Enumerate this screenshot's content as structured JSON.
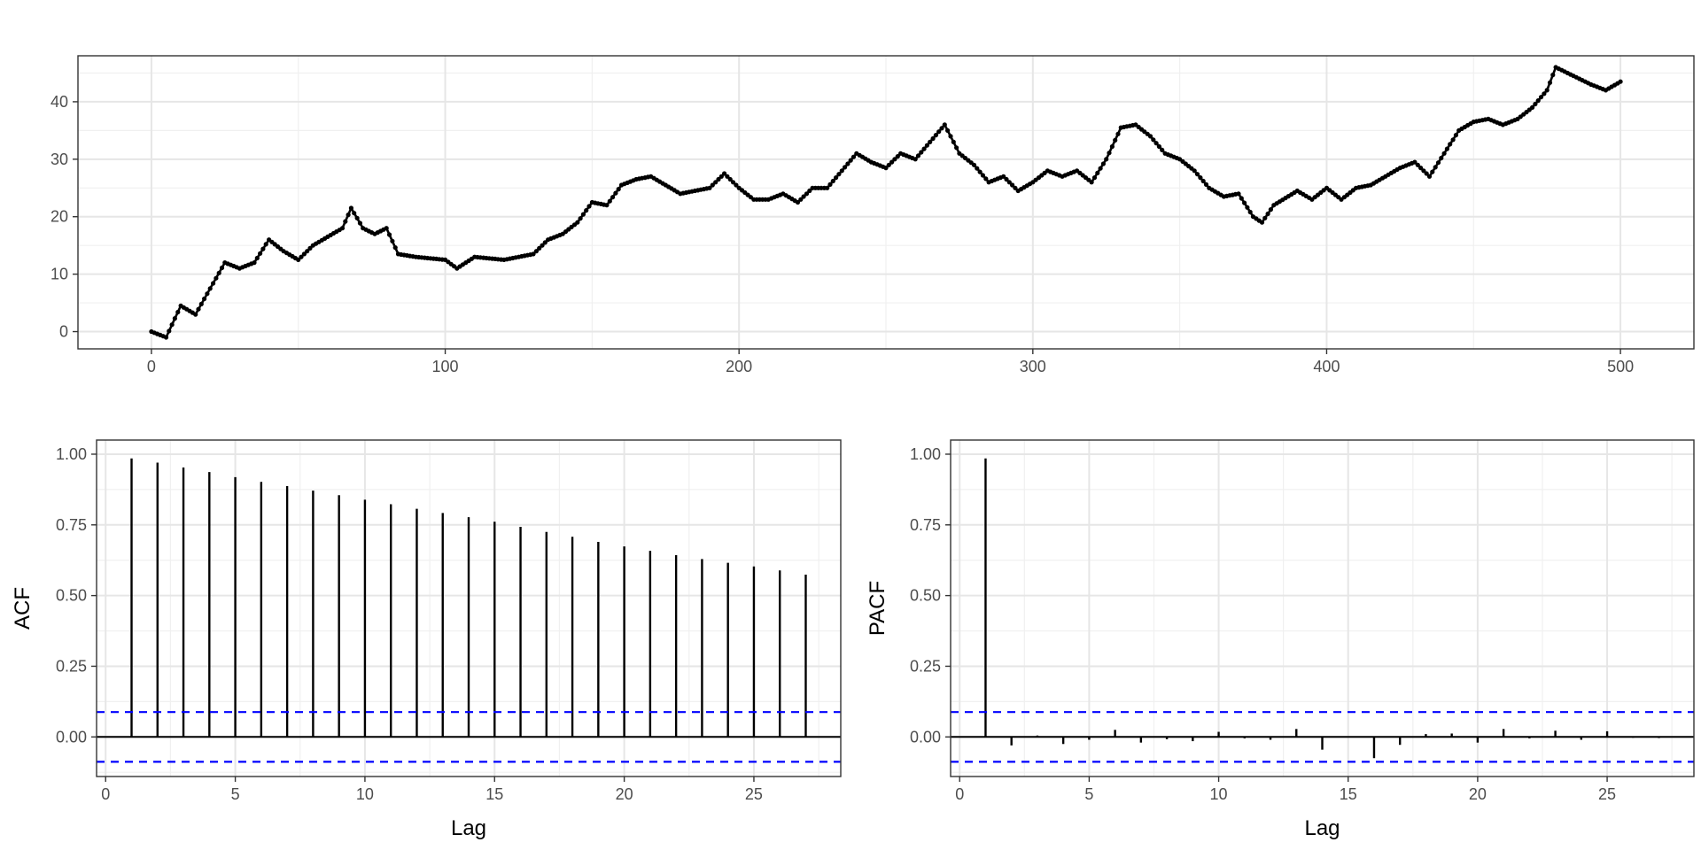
{
  "colors": {
    "line": "#000000",
    "ci": "#0000ff",
    "grid_major": "#e6e6e6",
    "grid_minor": "#f0f0f0",
    "frame": "#333333"
  },
  "chart_data": [
    {
      "type": "line",
      "title": "",
      "xlabel": "",
      "ylabel": "",
      "xlim": [
        -25,
        525
      ],
      "ylim": [
        -3,
        48
      ],
      "x_ticks": [
        "0",
        "100",
        "200",
        "300",
        "400",
        "500"
      ],
      "y_ticks": [
        "0",
        "10",
        "20",
        "30",
        "40"
      ],
      "markers": true,
      "grid": true,
      "series": [
        {
          "points": [
            [
              0,
              0
            ],
            [
              5,
              -1
            ],
            [
              10,
              4.5
            ],
            [
              15,
              3
            ],
            [
              20,
              7.5
            ],
            [
              25,
              12
            ],
            [
              30,
              11
            ],
            [
              35,
              12
            ],
            [
              40,
              16
            ],
            [
              45,
              14
            ],
            [
              50,
              12.5
            ],
            [
              55,
              15
            ],
            [
              60,
              16.5
            ],
            [
              65,
              18
            ],
            [
              68,
              21.5
            ],
            [
              72,
              18
            ],
            [
              76,
              17
            ],
            [
              80,
              18
            ],
            [
              84,
              13.5
            ],
            [
              90,
              13
            ],
            [
              100,
              12.5
            ],
            [
              104,
              11
            ],
            [
              110,
              13
            ],
            [
              120,
              12.5
            ],
            [
              130,
              13.5
            ],
            [
              135,
              16
            ],
            [
              140,
              17
            ],
            [
              145,
              19
            ],
            [
              150,
              22.5
            ],
            [
              155,
              22
            ],
            [
              160,
              25.5
            ],
            [
              165,
              26.5
            ],
            [
              170,
              27
            ],
            [
              175,
              25.5
            ],
            [
              180,
              24
            ],
            [
              185,
              24.5
            ],
            [
              190,
              25
            ],
            [
              195,
              27.5
            ],
            [
              200,
              25
            ],
            [
              205,
              23
            ],
            [
              210,
              23
            ],
            [
              215,
              24
            ],
            [
              220,
              22.5
            ],
            [
              225,
              25
            ],
            [
              230,
              25
            ],
            [
              235,
              28
            ],
            [
              240,
              31
            ],
            [
              245,
              29.5
            ],
            [
              250,
              28.5
            ],
            [
              255,
              31
            ],
            [
              260,
              30
            ],
            [
              265,
              33
            ],
            [
              270,
              36
            ],
            [
              275,
              31
            ],
            [
              280,
              29
            ],
            [
              285,
              26
            ],
            [
              290,
              27
            ],
            [
              295,
              24.5
            ],
            [
              300,
              26
            ],
            [
              305,
              28
            ],
            [
              310,
              27
            ],
            [
              315,
              28
            ],
            [
              320,
              26
            ],
            [
              325,
              30
            ],
            [
              330,
              35.5
            ],
            [
              335,
              36
            ],
            [
              340,
              34
            ],
            [
              345,
              31
            ],
            [
              350,
              30
            ],
            [
              355,
              28
            ],
            [
              360,
              25
            ],
            [
              365,
              23.5
            ],
            [
              370,
              24
            ],
            [
              375,
              20
            ],
            [
              378,
              19
            ],
            [
              382,
              22
            ],
            [
              390,
              24.5
            ],
            [
              395,
              23
            ],
            [
              400,
              25
            ],
            [
              405,
              23
            ],
            [
              410,
              25
            ],
            [
              415,
              25.5
            ],
            [
              420,
              27
            ],
            [
              425,
              28.5
            ],
            [
              430,
              29.5
            ],
            [
              435,
              27
            ],
            [
              440,
              31
            ],
            [
              445,
              35
            ],
            [
              450,
              36.5
            ],
            [
              455,
              37
            ],
            [
              460,
              36
            ],
            [
              465,
              37
            ],
            [
              470,
              39
            ],
            [
              475,
              42
            ],
            [
              478,
              46
            ],
            [
              482,
              45
            ],
            [
              486,
              44
            ],
            [
              490,
              43
            ],
            [
              495,
              42
            ],
            [
              500,
              43.5
            ]
          ]
        }
      ]
    },
    {
      "type": "bar",
      "title": "",
      "xlabel": "Lag",
      "ylabel": "ACF",
      "xlim": [
        -0.35,
        28.35
      ],
      "ylim": [
        -0.14,
        1.05
      ],
      "x_ticks": [
        "0",
        "5",
        "10",
        "15",
        "20",
        "25"
      ],
      "y_ticks": [
        "0.00",
        "0.25",
        "0.50",
        "0.75",
        "1.00"
      ],
      "ci": 0.088,
      "grid": true,
      "lags": [
        1,
        2,
        3,
        4,
        5,
        6,
        7,
        8,
        9,
        10,
        11,
        12,
        13,
        14,
        15,
        16,
        17,
        18,
        19,
        20,
        21,
        22,
        23,
        24,
        25,
        26,
        27
      ],
      "values": [
        0.985,
        0.97,
        0.953,
        0.937,
        0.919,
        0.902,
        0.887,
        0.871,
        0.855,
        0.839,
        0.823,
        0.807,
        0.792,
        0.777,
        0.761,
        0.743,
        0.725,
        0.708,
        0.69,
        0.674,
        0.658,
        0.643,
        0.629,
        0.616,
        0.603,
        0.589,
        0.574
      ]
    },
    {
      "type": "bar",
      "title": "",
      "xlabel": "Lag",
      "ylabel": "PACF",
      "xlim": [
        -0.35,
        28.35
      ],
      "ylim": [
        -0.14,
        1.05
      ],
      "x_ticks": [
        "0",
        "5",
        "10",
        "15",
        "20",
        "25"
      ],
      "y_ticks": [
        "0.00",
        "0.25",
        "0.50",
        "0.75",
        "1.00"
      ],
      "ci": 0.088,
      "grid": true,
      "lags": [
        1,
        2,
        3,
        4,
        5,
        6,
        7,
        8,
        9,
        10,
        11,
        12,
        13,
        14,
        15,
        16,
        17,
        18,
        19,
        20,
        21,
        22,
        23,
        24,
        25,
        26,
        27
      ],
      "values": [
        0.985,
        -0.03,
        0.005,
        -0.025,
        -0.01,
        0.025,
        -0.02,
        -0.008,
        -0.015,
        0.018,
        -0.005,
        -0.01,
        0.028,
        -0.045,
        0.002,
        -0.075,
        -0.028,
        0.01,
        0.012,
        -0.02,
        0.028,
        -0.005,
        0.022,
        -0.01,
        0.02,
        -0.003,
        -0.004
      ]
    }
  ]
}
